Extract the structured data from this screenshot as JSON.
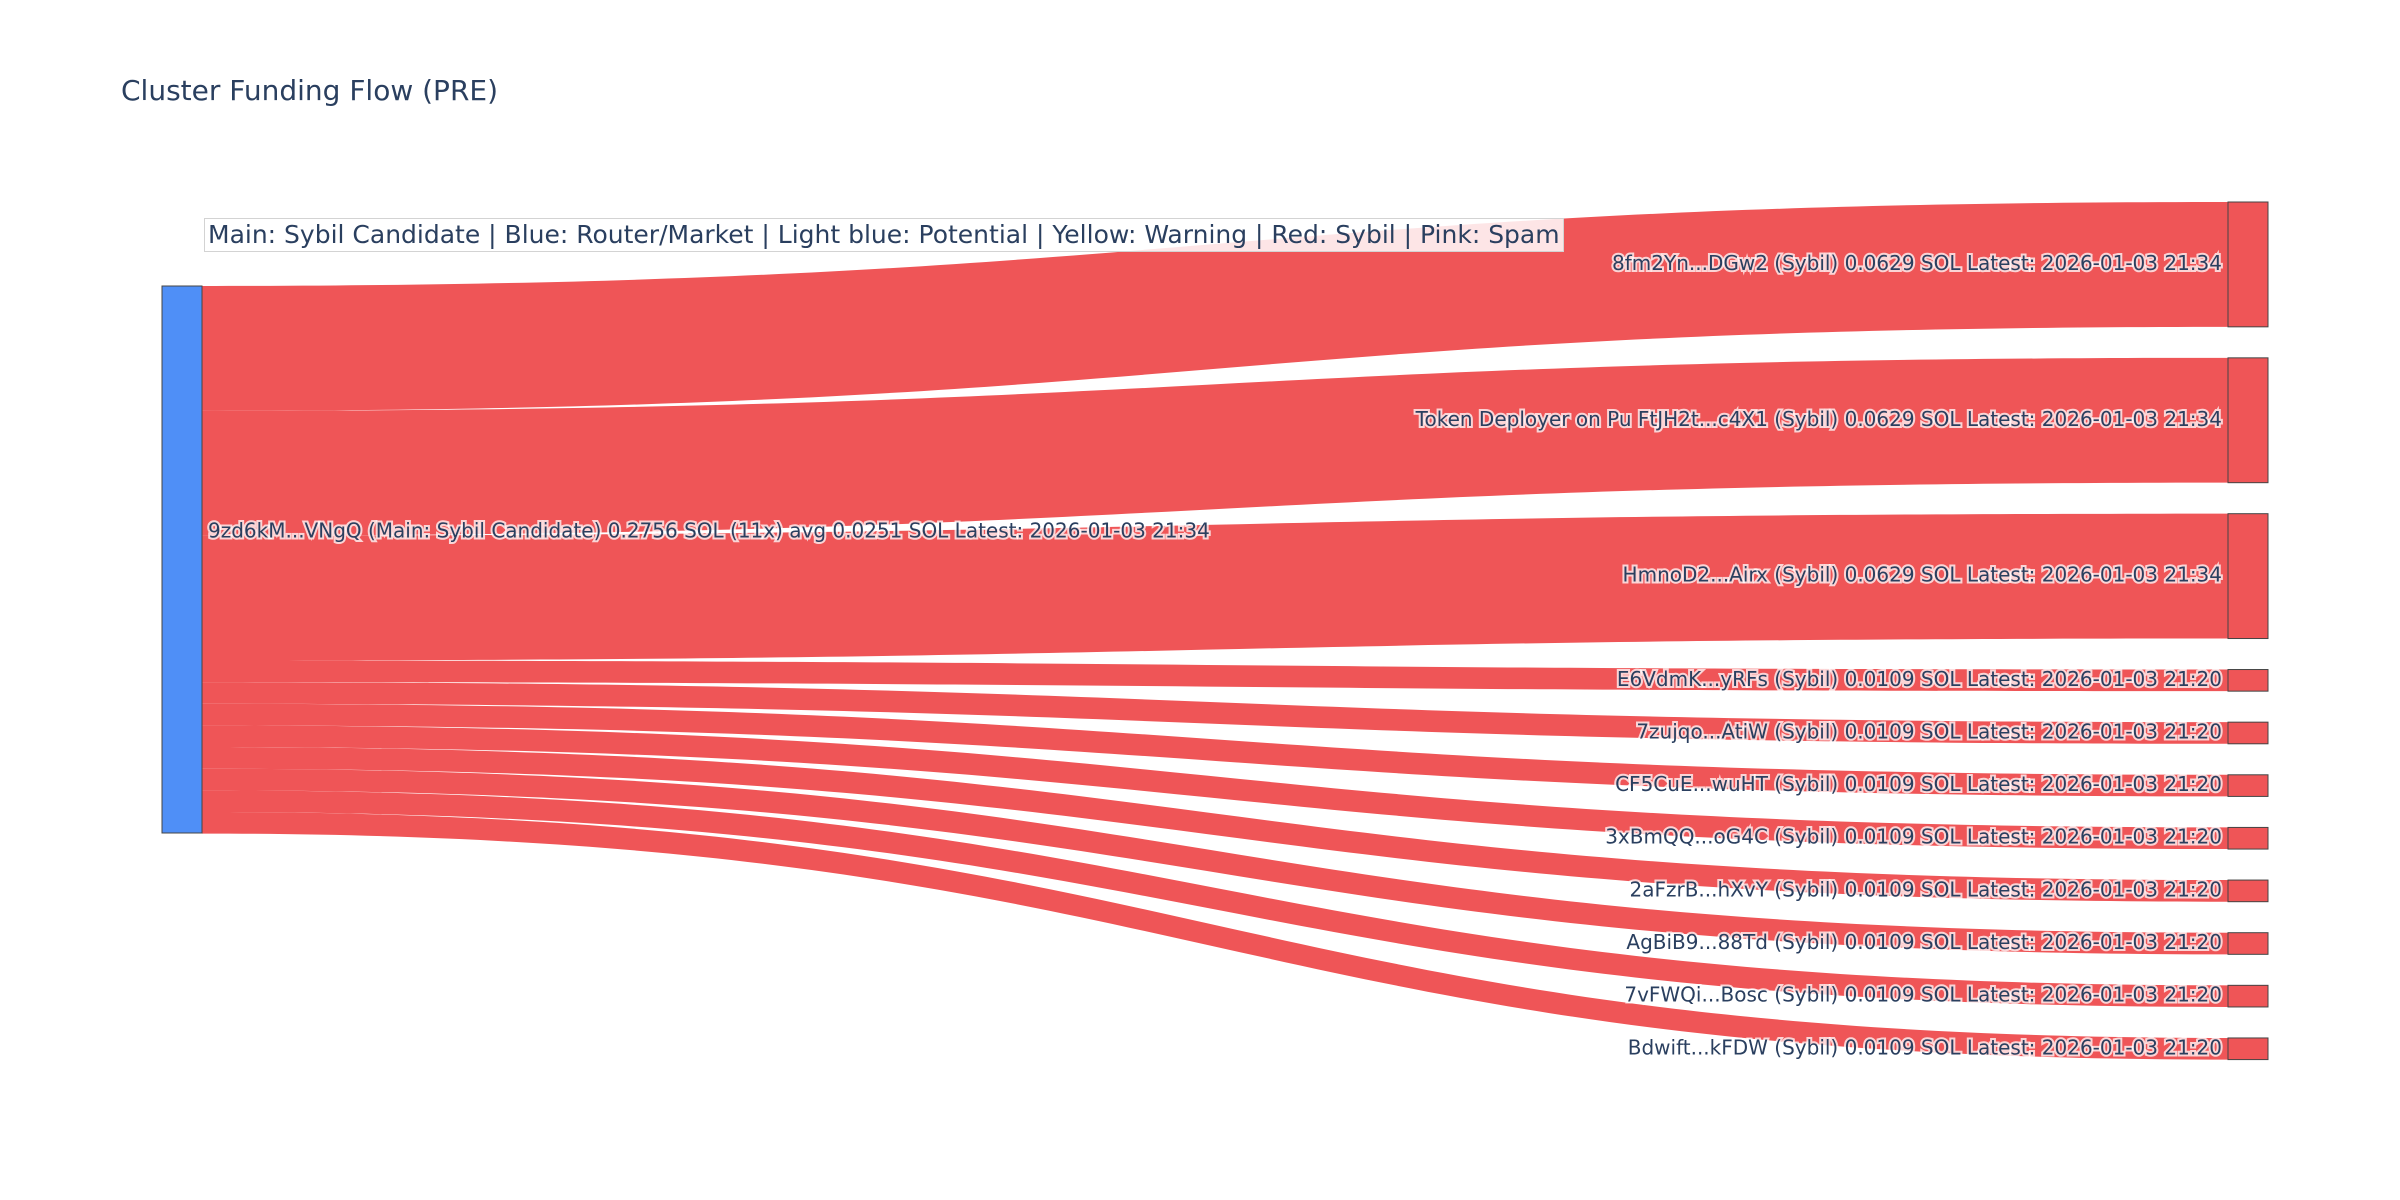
{
  "title": "Cluster Funding Flow (PRE)",
  "legend_note": "Main: Sybil Candidate  |  Blue: Router/Market | Light blue: Potential | Yellow: Warning | Red: Sybil | Pink: Spam",
  "colors": {
    "main_node": "#4f8ff7",
    "sybil_node": "#ef5557",
    "link": "#ef5557",
    "node_border": "#444444",
    "text": "#2a3f5f"
  },
  "chart_data": {
    "type": "sankey",
    "source": {
      "label": "9zd6kM...VNgQ (Main: Sybil Candidate) 0.2756 SOL (11x) avg 0.0251 SOL Latest: 2026-01-03 21:34",
      "value": 0.2756
    },
    "targets": [
      {
        "label": "8fm2Yn...DGw2 (Sybil) 0.0629 SOL Latest: 2026-01-03 21:34",
        "value": 0.0629
      },
      {
        "label": "Token Deployer on Pu FtJH2t...c4X1 (Sybil) 0.0629 SOL Latest: 2026-01-03 21:34",
        "value": 0.0629
      },
      {
        "label": "HmnoD2...Airx (Sybil) 0.0629 SOL Latest: 2026-01-03 21:34",
        "value": 0.0629
      },
      {
        "label": "E6VdmK...yRFs (Sybil) 0.0109 SOL Latest: 2026-01-03 21:20",
        "value": 0.0109
      },
      {
        "label": "7zujqo...AtiW (Sybil) 0.0109 SOL Latest: 2026-01-03 21:20",
        "value": 0.0109
      },
      {
        "label": "CF5CuE...wuHT (Sybil) 0.0109 SOL Latest: 2026-01-03 21:20",
        "value": 0.0109
      },
      {
        "label": "3xBmQQ...oG4C (Sybil) 0.0109 SOL Latest: 2026-01-03 21:20",
        "value": 0.0109
      },
      {
        "label": "2aFzrB...hXvY (Sybil) 0.0109 SOL Latest: 2026-01-03 21:20",
        "value": 0.0109
      },
      {
        "label": "AgBiB9...88Td (Sybil) 0.0109 SOL Latest: 2026-01-03 21:20",
        "value": 0.0109
      },
      {
        "label": "7vFWQi...Bosc (Sybil) 0.0109 SOL Latest: 2026-01-03 21:20",
        "value": 0.0109
      },
      {
        "label": "Bdwift...kFDW (Sybil) 0.0109 SOL Latest: 2026-01-03 21:20",
        "value": 0.0109
      }
    ]
  }
}
